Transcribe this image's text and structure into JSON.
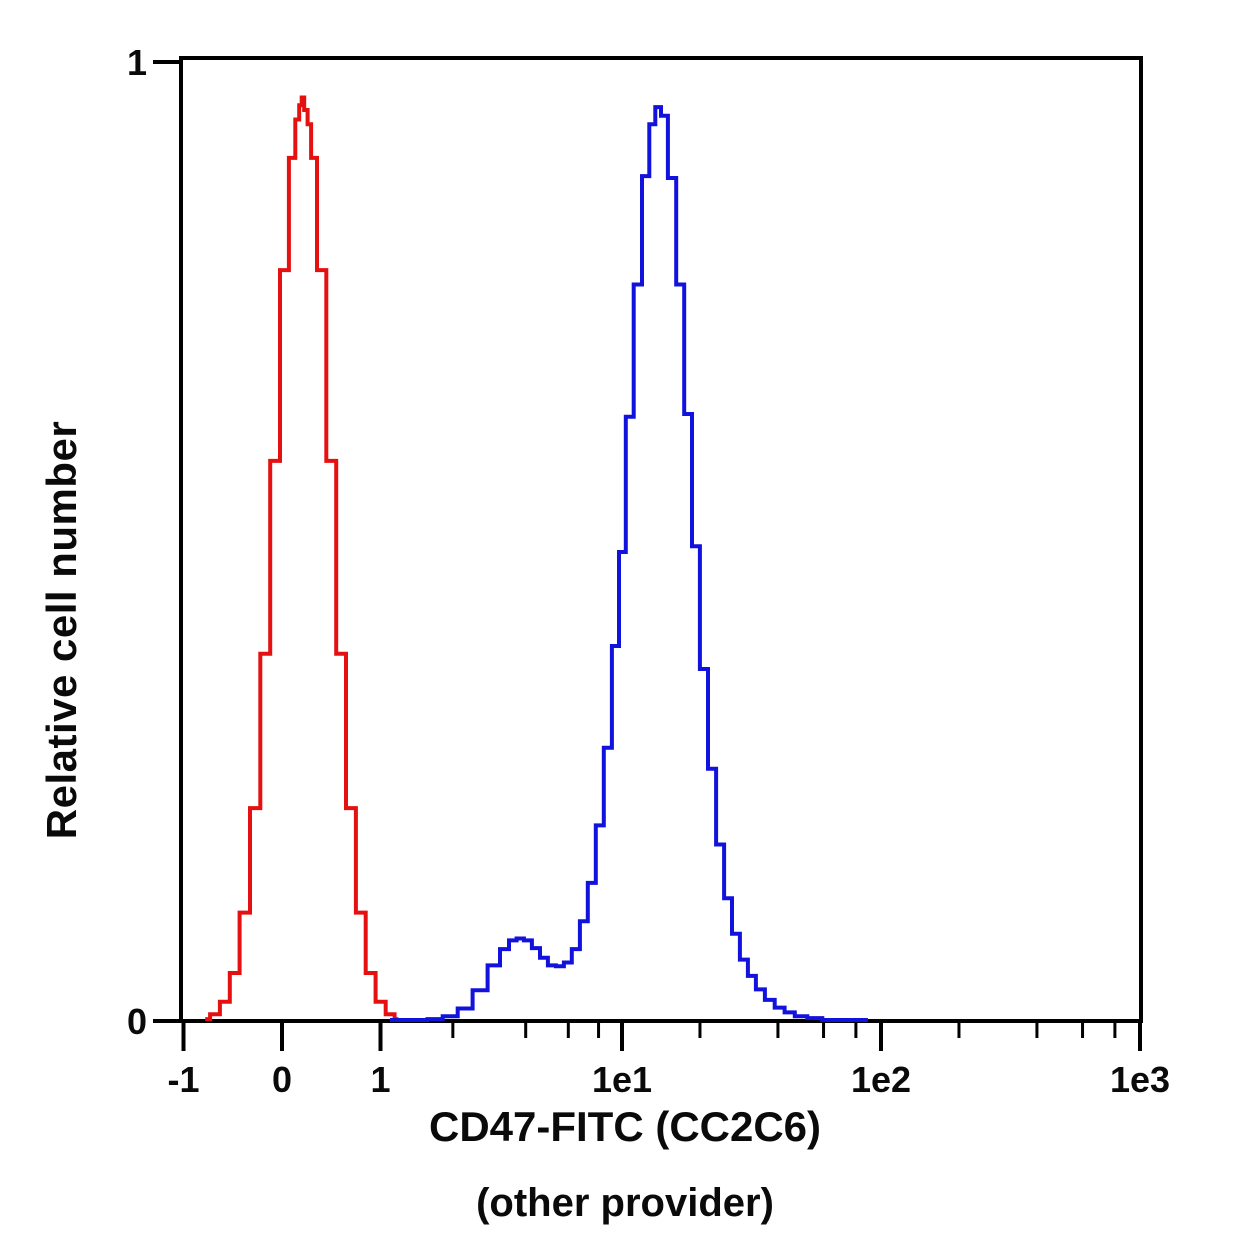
{
  "figure": {
    "ylabel": "Relative cell number",
    "xlabel_line1": "CD47-FITC (CC2C6)",
    "xlabel_line2": "(other provider)"
  },
  "chart_data": {
    "type": "line",
    "subtype": "flow-cytometry-histogram-overlay",
    "title": "",
    "xlabel": "CD47-FITC (CC2C6) (other provider)",
    "ylabel": "Relative cell number",
    "x_scale": "biexponential (linear from -1 to 1, log decades above 1)",
    "xlim": [
      -1.03,
      1000
    ],
    "ylim": [
      0,
      1
    ],
    "grid": false,
    "legend": "none",
    "axis_color": "#000000",
    "x_major_ticks": [
      {
        "value": -1,
        "label": "-1"
      },
      {
        "value": 0,
        "label": "0"
      },
      {
        "value": 1,
        "label": "1"
      },
      {
        "value": 10,
        "label": "1e1"
      },
      {
        "value": 100,
        "label": "1e2"
      },
      {
        "value": 1000,
        "label": "1e3"
      }
    ],
    "x_minor_ticks": [
      2,
      4,
      6,
      8,
      20,
      40,
      60,
      80,
      200,
      400,
      600,
      800
    ],
    "y_major_ticks": [
      {
        "value": 0,
        "label": "0"
      },
      {
        "value": 1,
        "label": "1"
      }
    ],
    "series": [
      {
        "name": "red-curve-negative-control",
        "color": "#e51111",
        "peak_x": 0.21,
        "peak_y": 0.963,
        "points": [
          [
            -0.78,
            0.002
          ],
          [
            -0.68,
            0.007
          ],
          [
            -0.58,
            0.02
          ],
          [
            -0.48,
            0.05
          ],
          [
            -0.38,
            0.113
          ],
          [
            -0.27,
            0.222
          ],
          [
            -0.17,
            0.383
          ],
          [
            -0.07,
            0.584
          ],
          [
            0.03,
            0.783
          ],
          [
            0.11,
            0.9
          ],
          [
            0.16,
            0.94
          ],
          [
            0.19,
            0.955
          ],
          [
            0.21,
            0.963
          ],
          [
            0.24,
            0.95
          ],
          [
            0.28,
            0.935
          ],
          [
            0.31,
            0.9
          ],
          [
            0.4,
            0.783
          ],
          [
            0.5,
            0.584
          ],
          [
            0.6,
            0.383
          ],
          [
            0.7,
            0.222
          ],
          [
            0.8,
            0.113
          ],
          [
            0.9,
            0.05
          ],
          [
            1.0,
            0.02
          ],
          [
            1.11,
            0.007
          ],
          [
            1.19,
            0.002
          ]
        ]
      },
      {
        "name": "blue-curve-cd47-fitc-stained",
        "color": "#1212dd",
        "peak_x": 13.8,
        "peak_y": 0.953,
        "secondary_peak_x": 3.8,
        "secondary_peak_y": 0.086,
        "points": [
          [
            1.1,
            0.001
          ],
          [
            1.46,
            0.001
          ],
          [
            1.69,
            0.002
          ],
          [
            1.95,
            0.005
          ],
          [
            2.25,
            0.013
          ],
          [
            2.59,
            0.032
          ],
          [
            2.99,
            0.058
          ],
          [
            3.28,
            0.075
          ],
          [
            3.55,
            0.084
          ],
          [
            3.79,
            0.086
          ],
          [
            4.08,
            0.084
          ],
          [
            4.41,
            0.076
          ],
          [
            4.76,
            0.066
          ],
          [
            5.13,
            0.058
          ],
          [
            5.54,
            0.057
          ],
          [
            5.97,
            0.061
          ],
          [
            6.45,
            0.075
          ],
          [
            6.96,
            0.104
          ],
          [
            7.5,
            0.144
          ],
          [
            8.1,
            0.204
          ],
          [
            8.74,
            0.285
          ],
          [
            9.44,
            0.391
          ],
          [
            10.0,
            0.489
          ],
          [
            10.7,
            0.63
          ],
          [
            11.5,
            0.768
          ],
          [
            12.4,
            0.881
          ],
          [
            13.1,
            0.935
          ],
          [
            13.8,
            0.953
          ],
          [
            14.5,
            0.944
          ],
          [
            15.6,
            0.879
          ],
          [
            16.8,
            0.768
          ],
          [
            18.0,
            0.633
          ],
          [
            19.3,
            0.495
          ],
          [
            20.7,
            0.367
          ],
          [
            22.3,
            0.263
          ],
          [
            23.9,
            0.184
          ],
          [
            25.7,
            0.128
          ],
          [
            27.5,
            0.091
          ],
          [
            29.6,
            0.064
          ],
          [
            31.7,
            0.047
          ],
          [
            34.1,
            0.033
          ],
          [
            37.2,
            0.022
          ],
          [
            40.6,
            0.014
          ],
          [
            44.4,
            0.009
          ],
          [
            48.6,
            0.005
          ],
          [
            55.5,
            0.003
          ],
          [
            63.5,
            0.001
          ],
          [
            75.6,
            0.001
          ],
          [
            89.0,
            0.001
          ]
        ]
      }
    ]
  }
}
